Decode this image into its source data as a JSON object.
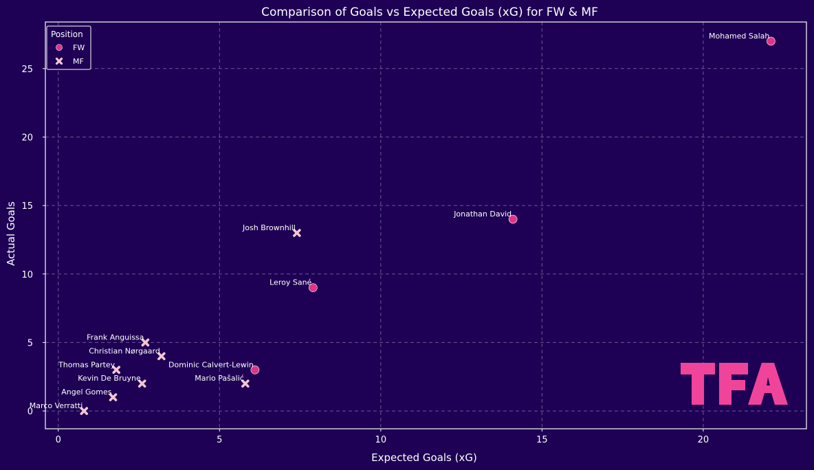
{
  "chart_data": {
    "type": "scatter",
    "title": "Comparison of Goals vs Expected Goals (xG) for FW & MF",
    "xlabel": "Expected Goals (xG)",
    "ylabel": "Actual Goals",
    "xlim": [
      -0.4,
      23.2
    ],
    "ylim": [
      -1.3,
      28.4
    ],
    "xticks": [
      0,
      5,
      10,
      15,
      20
    ],
    "yticks": [
      0,
      5,
      10,
      15,
      20,
      25
    ],
    "grid": true,
    "legend": {
      "title": "Position",
      "placement": "top-left",
      "entries": [
        {
          "label": "FW",
          "marker": "circle",
          "color": "#e0348a"
        },
        {
          "label": "MF",
          "marker": "x",
          "color": "#f3c6d4"
        }
      ]
    },
    "series": [
      {
        "name": "FW",
        "color": "#e0348a",
        "marker": "circle",
        "points": [
          {
            "label": "Mohamed Salah",
            "x": 22.1,
            "y": 27
          },
          {
            "label": "Jonathan David",
            "x": 14.1,
            "y": 14
          },
          {
            "label": "Leroy Sané",
            "x": 7.9,
            "y": 9
          },
          {
            "label": "Dominic Calvert-Lewin",
            "x": 6.1,
            "y": 3
          }
        ]
      },
      {
        "name": "MF",
        "color": "#f3c6d4",
        "marker": "x",
        "points": [
          {
            "label": "Josh Brownhill",
            "x": 7.4,
            "y": 13
          },
          {
            "label": "Frank Anguissa",
            "x": 2.7,
            "y": 5
          },
          {
            "label": "Christian Nørgaard",
            "x": 3.2,
            "y": 4
          },
          {
            "label": "Thomas Partey",
            "x": 1.8,
            "y": 3
          },
          {
            "label": "Kevin De Bruyne",
            "x": 2.6,
            "y": 2
          },
          {
            "label": "Mario Pašalić",
            "x": 5.8,
            "y": 2
          },
          {
            "label": "Angel Gomes",
            "x": 1.7,
            "y": 1
          },
          {
            "label": "Marco Verratti",
            "x": 0.8,
            "y": 0
          }
        ]
      }
    ]
  },
  "colors": {
    "background": "#1e0054",
    "axes_frame": "#ffffff",
    "grid": "#6a5a94",
    "logo": "#f0449a"
  },
  "logo": {
    "text": "TFA"
  }
}
